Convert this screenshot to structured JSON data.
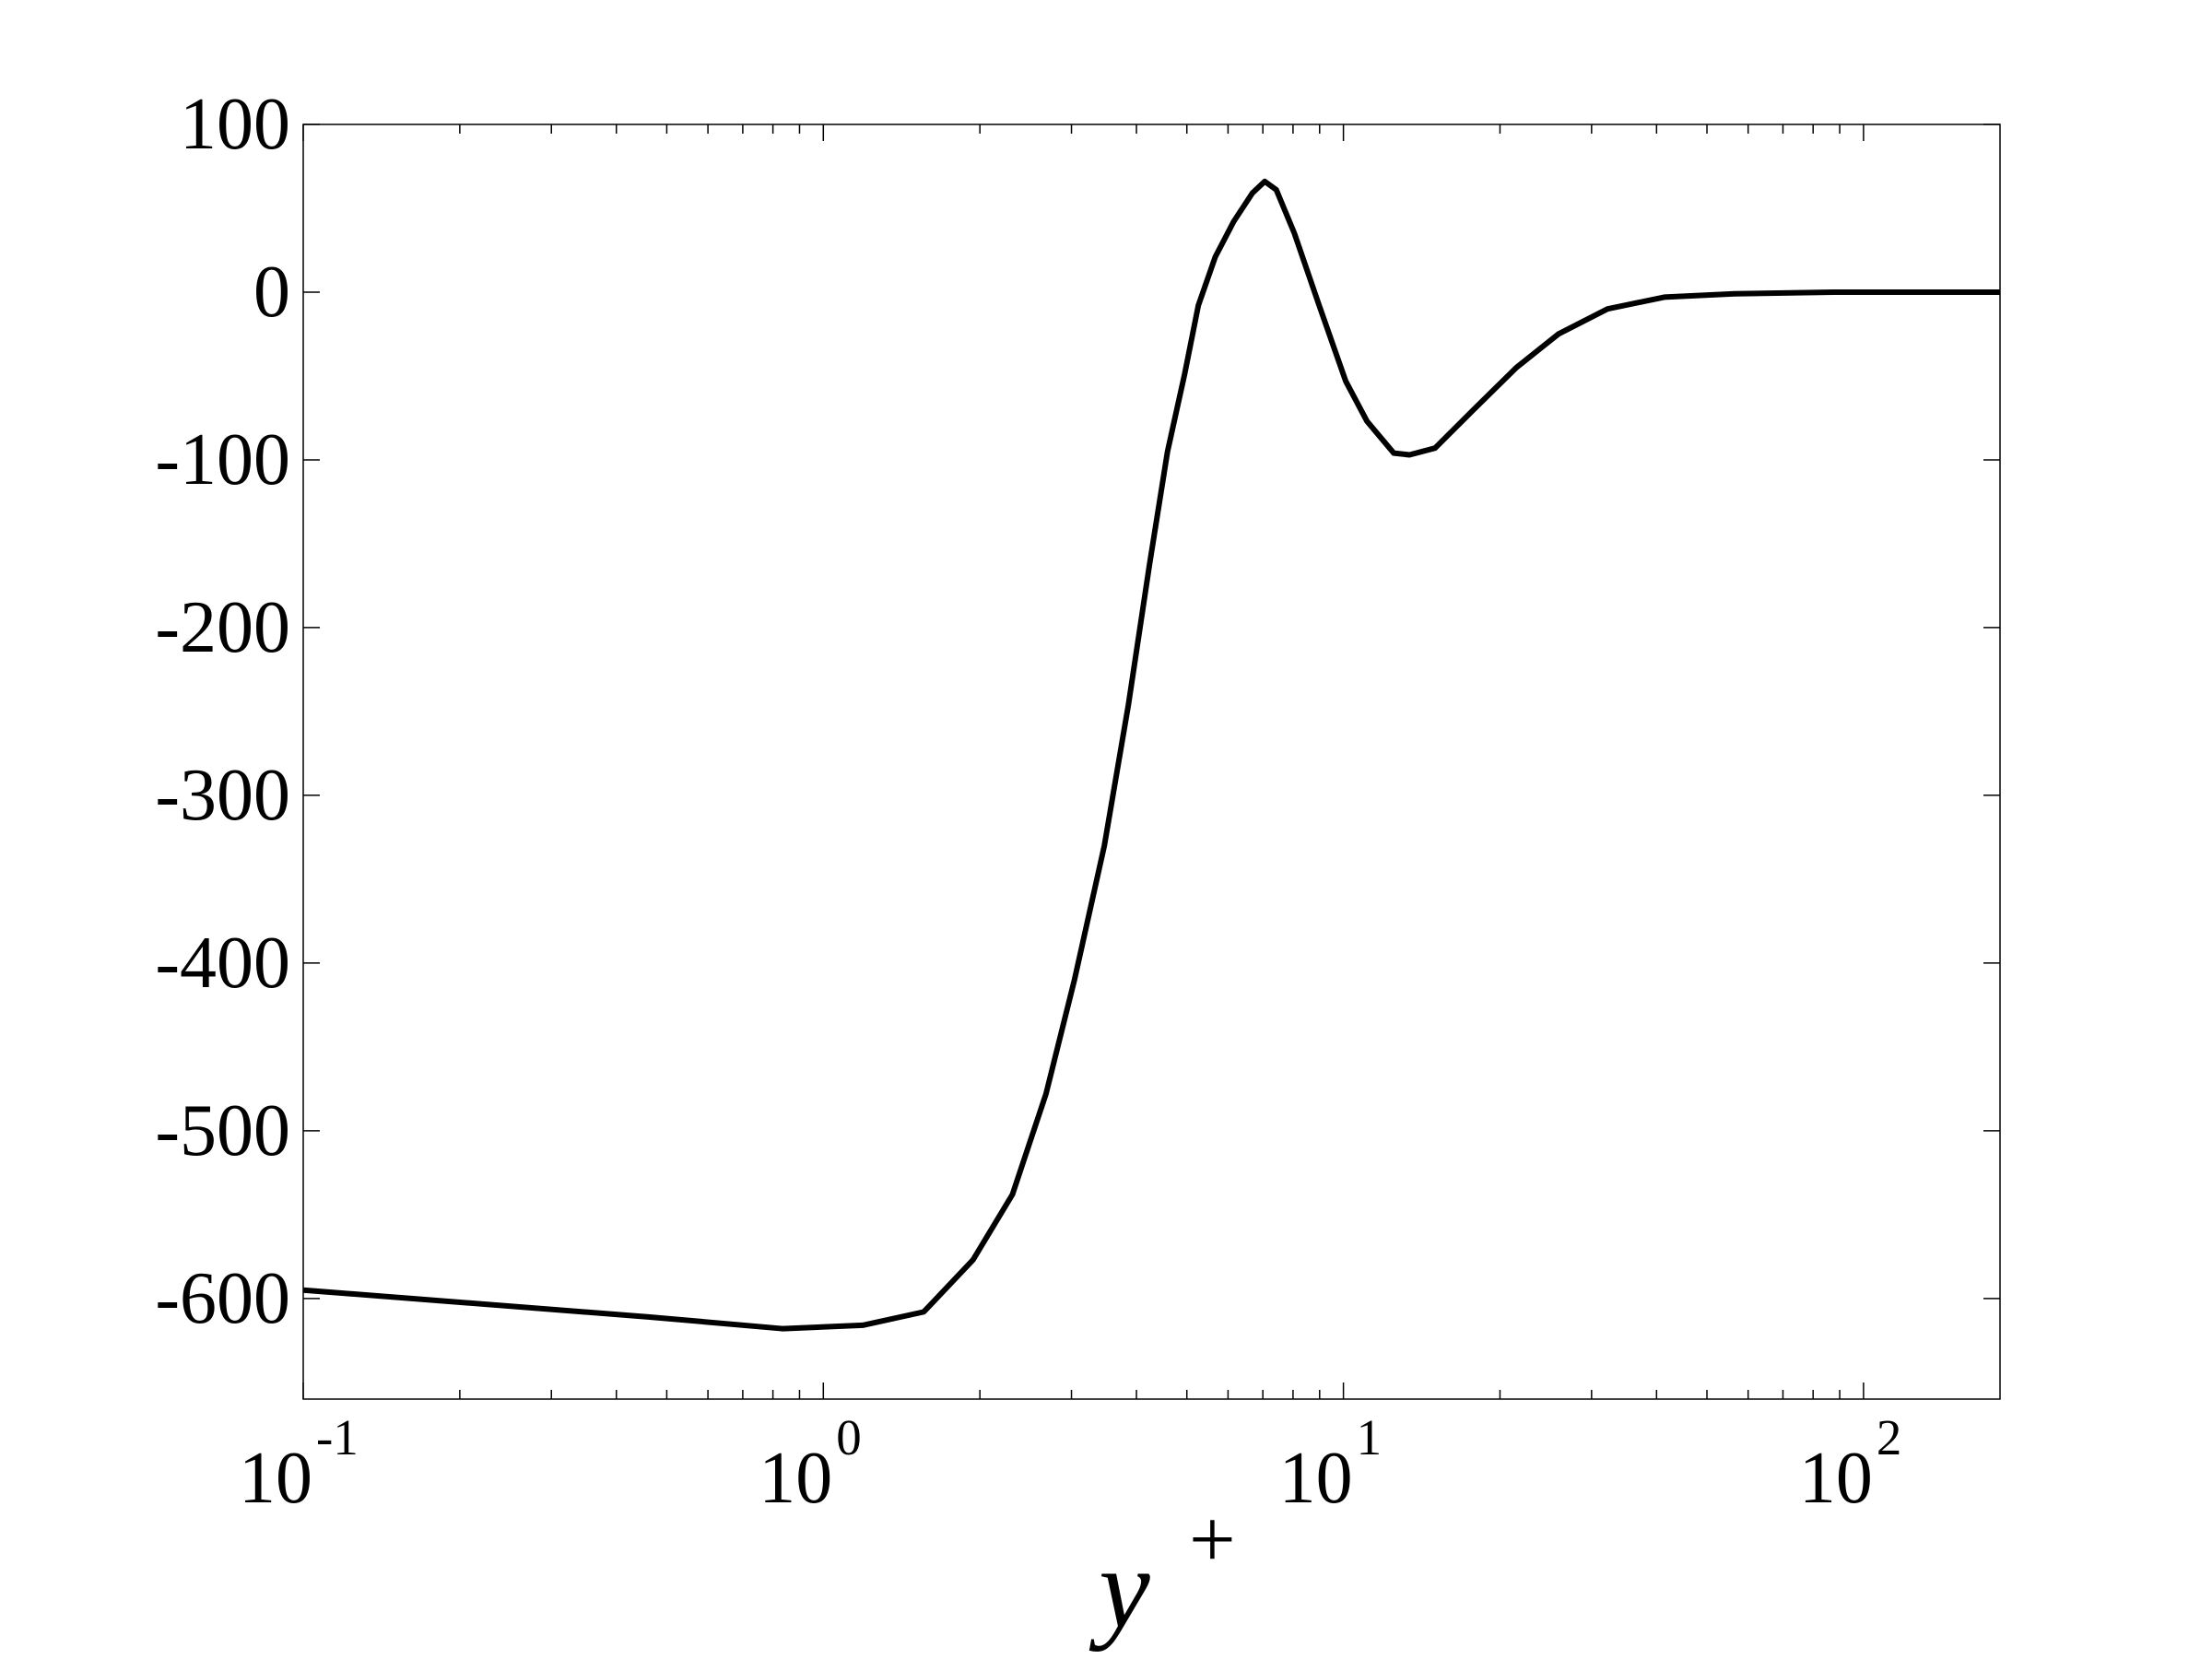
{
  "chart_data": {
    "type": "line",
    "xlabel": {
      "text": "y",
      "superscript": "+"
    },
    "x": [
      0.1,
      0.461,
      0.834,
      1.19,
      1.56,
      1.94,
      2.31,
      2.68,
      3.04,
      3.47,
      3.86,
      4.24,
      4.59,
      4.95,
      5.26,
      5.67,
      6.15,
      6.68,
      7.06,
      7.43,
      8.05,
      8.96,
      10.1,
      11.1,
      12.5,
      13.4,
      15.0,
      17.8,
      21.5,
      25.9,
      32.2,
      41.4,
      56.5,
      87.5,
      183
    ],
    "series": [
      {
        "color": "#000000",
        "values": [
          -595,
          -611,
          -618,
          -616,
          -608,
          -577,
          -538,
          -478,
          -410,
          -330,
          -246,
          -162,
          -95,
          -49,
          -8,
          21,
          42,
          59,
          66,
          61,
          35,
          -7,
          -53,
          -77,
          -96,
          -97,
          -93,
          -70,
          -45,
          -25,
          -10,
          -3,
          -1,
          0,
          0
        ]
      }
    ],
    "xscale": "log",
    "xlim": [
      0.1,
      183
    ],
    "ylim": [
      -660,
      100
    ],
    "xticks": [
      {
        "value": 0.1,
        "label": "10",
        "exponent": "-1"
      },
      {
        "value": 1,
        "label": "10",
        "exponent": "0"
      },
      {
        "value": 10,
        "label": "10",
        "exponent": "1"
      },
      {
        "value": 100,
        "label": "10",
        "exponent": "2"
      }
    ],
    "xminorticks": [
      0.2,
      0.3,
      0.4,
      0.5,
      0.6,
      0.7,
      0.8,
      0.9,
      2,
      3,
      4,
      5,
      6,
      7,
      8,
      9,
      20,
      30,
      40,
      50,
      60,
      70,
      80,
      90
    ],
    "yticks": [
      100,
      0,
      -100,
      -200,
      -300,
      -400,
      -500,
      -600
    ],
    "grid": false
  }
}
